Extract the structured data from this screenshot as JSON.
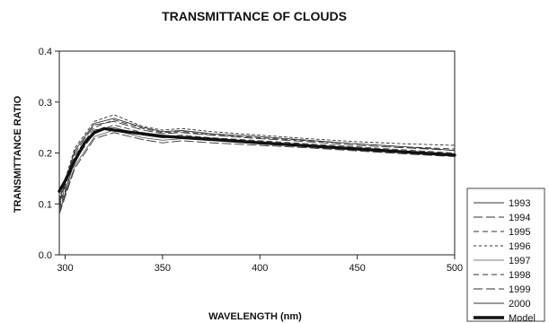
{
  "chart_data": {
    "type": "line",
    "title": "TRANSMITTANCE OF CLOUDS",
    "xlabel": "WAVELENGTH (nm)",
    "ylabel": "TRANSMITTANCE RATIO",
    "xlim": [
      297,
      500
    ],
    "ylim": [
      0.0,
      0.4
    ],
    "xticks": [
      300,
      350,
      400,
      450,
      500
    ],
    "yticks": [
      0.0,
      0.1,
      0.2,
      0.3,
      0.4
    ],
    "xtick_labels": [
      "300",
      "350",
      "400",
      "450",
      "500"
    ],
    "ytick_labels": [
      "0.0",
      "0.1",
      "0.2",
      "0.3",
      "0.4"
    ],
    "grid": false,
    "legend_position": "right, below plot",
    "series": [
      {
        "name": "1993",
        "style": "solid-thin",
        "color": "#333333",
        "x": [
          297,
          305,
          315,
          325,
          340,
          350,
          360,
          375,
          400,
          425,
          450,
          475,
          500
        ],
        "y": [
          0.08,
          0.19,
          0.245,
          0.25,
          0.235,
          0.23,
          0.232,
          0.228,
          0.222,
          0.215,
          0.208,
          0.203,
          0.198
        ]
      },
      {
        "name": "1994",
        "style": "long-dash",
        "color": "#333333",
        "x": [
          297,
          305,
          315,
          325,
          340,
          350,
          360,
          375,
          400,
          425,
          450,
          475,
          500
        ],
        "y": [
          0.1,
          0.2,
          0.255,
          0.262,
          0.245,
          0.238,
          0.24,
          0.235,
          0.228,
          0.222,
          0.215,
          0.21,
          0.205
        ]
      },
      {
        "name": "1995",
        "style": "dash",
        "color": "#333333",
        "x": [
          297,
          305,
          315,
          325,
          340,
          350,
          360,
          375,
          400,
          425,
          450,
          475,
          500
        ],
        "y": [
          0.09,
          0.185,
          0.24,
          0.255,
          0.24,
          0.232,
          0.235,
          0.23,
          0.224,
          0.218,
          0.212,
          0.206,
          0.2
        ]
      },
      {
        "name": "1996",
        "style": "short-dash",
        "color": "#333333",
        "x": [
          297,
          305,
          315,
          325,
          340,
          350,
          360,
          375,
          400,
          425,
          450,
          475,
          500
        ],
        "y": [
          0.11,
          0.21,
          0.262,
          0.275,
          0.252,
          0.245,
          0.248,
          0.242,
          0.235,
          0.228,
          0.222,
          0.218,
          0.215
        ]
      },
      {
        "name": "1997",
        "style": "solid-light",
        "color": "#555555",
        "x": [
          297,
          305,
          315,
          325,
          340,
          350,
          360,
          375,
          400,
          425,
          450,
          475,
          500
        ],
        "y": [
          0.085,
          0.175,
          0.232,
          0.245,
          0.23,
          0.225,
          0.228,
          0.224,
          0.218,
          0.212,
          0.206,
          0.2,
          0.195
        ]
      },
      {
        "name": "1998",
        "style": "dash",
        "color": "#333333",
        "x": [
          297,
          305,
          315,
          325,
          340,
          350,
          360,
          375,
          400,
          425,
          450,
          475,
          500
        ],
        "y": [
          0.095,
          0.195,
          0.25,
          0.265,
          0.248,
          0.24,
          0.242,
          0.236,
          0.23,
          0.224,
          0.218,
          0.212,
          0.208
        ]
      },
      {
        "name": "1999",
        "style": "long-dash",
        "color": "#333333",
        "x": [
          297,
          305,
          315,
          325,
          340,
          350,
          360,
          375,
          400,
          425,
          450,
          475,
          500
        ],
        "y": [
          0.08,
          0.17,
          0.228,
          0.24,
          0.226,
          0.22,
          0.224,
          0.22,
          0.215,
          0.21,
          0.204,
          0.198,
          0.193
        ]
      },
      {
        "name": "2000",
        "style": "solid-thin",
        "color": "#333333",
        "x": [
          297,
          305,
          315,
          325,
          340,
          350,
          360,
          375,
          400,
          425,
          450,
          475,
          500
        ],
        "y": [
          0.105,
          0.205,
          0.258,
          0.268,
          0.25,
          0.242,
          0.244,
          0.238,
          0.232,
          0.225,
          0.218,
          0.212,
          0.205
        ]
      },
      {
        "name": "Model",
        "style": "solid-thick",
        "color": "#111111",
        "x": [
          297,
          300,
          305,
          310,
          315,
          320,
          325,
          335,
          350,
          375,
          400,
          425,
          450,
          475,
          500
        ],
        "y": [
          0.125,
          0.145,
          0.185,
          0.22,
          0.24,
          0.248,
          0.245,
          0.24,
          0.233,
          0.227,
          0.22,
          0.214,
          0.208,
          0.202,
          0.196
        ]
      }
    ]
  }
}
